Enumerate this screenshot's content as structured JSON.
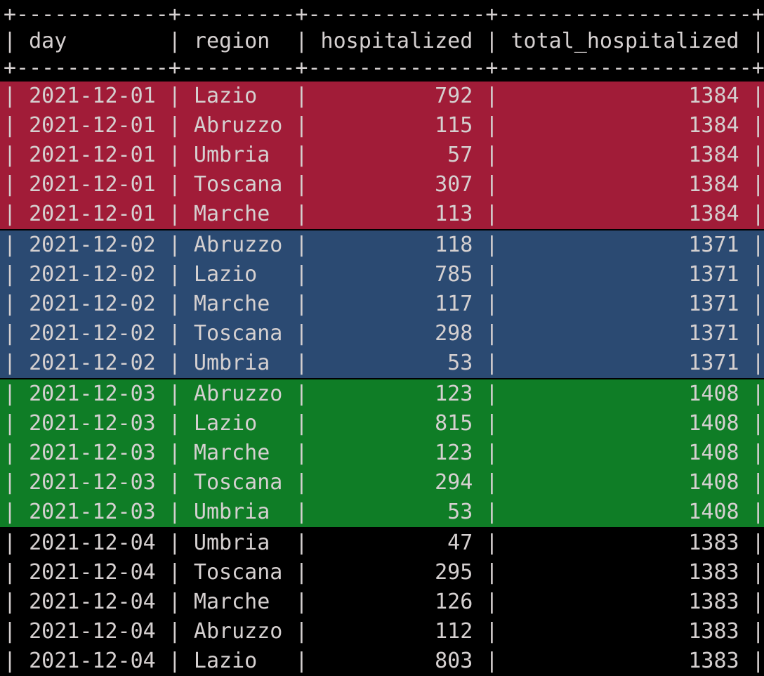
{
  "terminal": {
    "colors": {
      "background": "#000000",
      "text": "#d5d0d0",
      "highlight_red": "#a11c38",
      "highlight_blue": "#2b4a72",
      "highlight_green": "#0f7d26"
    },
    "table": {
      "columns": [
        "day",
        "region",
        "hospitalized",
        "total_hospitalized"
      ],
      "groups": [
        {
          "day": "2021-12-01",
          "highlight": "#a11c38",
          "rows": [
            {
              "day": "2021-12-01",
              "region": "Lazio",
              "hospitalized": 792,
              "total_hospitalized": 1384
            },
            {
              "day": "2021-12-01",
              "region": "Abruzzo",
              "hospitalized": 115,
              "total_hospitalized": 1384
            },
            {
              "day": "2021-12-01",
              "region": "Umbria",
              "hospitalized": 57,
              "total_hospitalized": 1384
            },
            {
              "day": "2021-12-01",
              "region": "Toscana",
              "hospitalized": 307,
              "total_hospitalized": 1384
            },
            {
              "day": "2021-12-01",
              "region": "Marche",
              "hospitalized": 113,
              "total_hospitalized": 1384
            }
          ]
        },
        {
          "day": "2021-12-02",
          "highlight": "#2b4a72",
          "rows": [
            {
              "day": "2021-12-02",
              "region": "Abruzzo",
              "hospitalized": 118,
              "total_hospitalized": 1371
            },
            {
              "day": "2021-12-02",
              "region": "Lazio",
              "hospitalized": 785,
              "total_hospitalized": 1371
            },
            {
              "day": "2021-12-02",
              "region": "Marche",
              "hospitalized": 117,
              "total_hospitalized": 1371
            },
            {
              "day": "2021-12-02",
              "region": "Toscana",
              "hospitalized": 298,
              "total_hospitalized": 1371
            },
            {
              "day": "2021-12-02",
              "region": "Umbria",
              "hospitalized": 53,
              "total_hospitalized": 1371
            }
          ]
        },
        {
          "day": "2021-12-03",
          "highlight": "#0f7d26",
          "rows": [
            {
              "day": "2021-12-03",
              "region": "Abruzzo",
              "hospitalized": 123,
              "total_hospitalized": 1408
            },
            {
              "day": "2021-12-03",
              "region": "Lazio",
              "hospitalized": 815,
              "total_hospitalized": 1408
            },
            {
              "day": "2021-12-03",
              "region": "Marche",
              "hospitalized": 123,
              "total_hospitalized": 1408
            },
            {
              "day": "2021-12-03",
              "region": "Toscana",
              "hospitalized": 294,
              "total_hospitalized": 1408
            },
            {
              "day": "2021-12-03",
              "region": "Umbria",
              "hospitalized": 53,
              "total_hospitalized": 1408
            }
          ]
        },
        {
          "day": "2021-12-04",
          "highlight": null,
          "rows": [
            {
              "day": "2021-12-04",
              "region": "Umbria",
              "hospitalized": 47,
              "total_hospitalized": 1383
            },
            {
              "day": "2021-12-04",
              "region": "Toscana",
              "hospitalized": 295,
              "total_hospitalized": 1383
            },
            {
              "day": "2021-12-04",
              "region": "Marche",
              "hospitalized": 126,
              "total_hospitalized": 1383
            },
            {
              "day": "2021-12-04",
              "region": "Abruzzo",
              "hospitalized": 112,
              "total_hospitalized": 1383
            },
            {
              "day": "2021-12-04",
              "region": "Lazio",
              "hospitalized": 803,
              "total_hospitalized": 1383
            }
          ]
        }
      ]
    }
  }
}
